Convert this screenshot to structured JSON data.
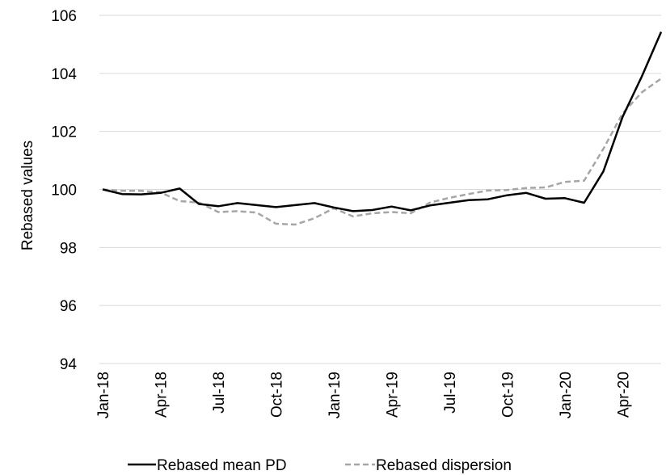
{
  "chart_data": {
    "type": "line",
    "ylabel": "Rebased values",
    "ylim": [
      94,
      106
    ],
    "yticks": [
      94,
      96,
      98,
      100,
      102,
      104,
      106
    ],
    "x": [
      "Jan-18",
      "Feb-18",
      "Mar-18",
      "Apr-18",
      "May-18",
      "Jun-18",
      "Jul-18",
      "Aug-18",
      "Sep-18",
      "Oct-18",
      "Nov-18",
      "Dec-18",
      "Jan-19",
      "Feb-19",
      "Mar-19",
      "Apr-19",
      "May-19",
      "Jun-19",
      "Jul-19",
      "Aug-19",
      "Sep-19",
      "Oct-19",
      "Nov-19",
      "Dec-19",
      "Jan-20",
      "Feb-20",
      "Mar-20",
      "Apr-20",
      "May-20",
      "Jun-20"
    ],
    "tick_labels": [
      "Jan-18",
      "Apr-18",
      "Jul-18",
      "Oct-18",
      "Jan-19",
      "Apr-19",
      "Jul-19",
      "Oct-19",
      "Jan-20",
      "Apr-20"
    ],
    "grid": "horizontal",
    "legend": "bottom",
    "series": [
      {
        "name": "Rebased mean PD",
        "color": "#000000",
        "dash": "solid",
        "values": [
          100.0,
          99.84,
          99.83,
          99.88,
          100.03,
          99.5,
          99.42,
          99.53,
          99.46,
          99.39,
          99.46,
          99.53,
          99.38,
          99.25,
          99.29,
          99.41,
          99.28,
          99.45,
          99.54,
          99.63,
          99.66,
          99.8,
          99.88,
          99.68,
          99.7,
          99.54,
          100.62,
          102.5,
          103.9,
          105.43
        ]
      },
      {
        "name": "Rebased dispersion",
        "color": "#a6a6a6",
        "dash": "dashed",
        "values": [
          100.0,
          99.95,
          99.95,
          99.9,
          99.6,
          99.55,
          99.22,
          99.25,
          99.2,
          98.82,
          98.79,
          99.01,
          99.35,
          99.07,
          99.18,
          99.22,
          99.18,
          99.55,
          99.71,
          99.84,
          99.96,
          99.98,
          100.05,
          100.07,
          100.26,
          100.3,
          101.4,
          102.62,
          103.35,
          103.82
        ]
      }
    ]
  }
}
